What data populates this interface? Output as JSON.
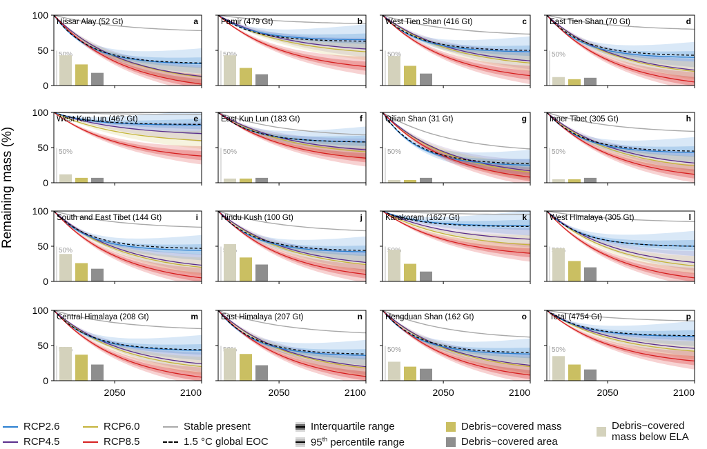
{
  "ylabel": "Remaining mass (%)",
  "yticks": [
    "0",
    "50",
    "100"
  ],
  "xticks": [
    "2050",
    "2100"
  ],
  "bar_ref_label": "50%",
  "colors": {
    "rcp26": "#2a7fd0",
    "rcp45": "#5a2d8c",
    "rcp60": "#c4b33a",
    "rcp85": "#d62020",
    "stable": "#a9a9a9",
    "bar_mass_below_ela": "#d4d2bc",
    "bar_debris_mass": "#cabf62",
    "bar_debris_area": "#8e8e8e"
  },
  "chart_data": [
    {
      "type": "line",
      "letter": "a",
      "title": "Hissar Alay (52 Gt)",
      "xlim": [
        2015,
        2100
      ],
      "ylim": [
        0,
        100
      ],
      "end": {
        "rcp26": 31,
        "rcp45": 13,
        "rcp60": 12,
        "rcp85": 2,
        "eoc15": 32,
        "stable": 78
      },
      "bars": [
        43,
        30,
        18
      ]
    },
    {
      "type": "line",
      "letter": "b",
      "title": "Pamir (479 Gt)",
      "xlim": [
        2015,
        2100
      ],
      "ylim": [
        0,
        100
      ],
      "end": {
        "rcp26": 65,
        "rcp45": 52,
        "rcp60": 48,
        "rcp85": 27,
        "eoc15": 63,
        "stable": 88
      },
      "bars": [
        43,
        25,
        16
      ]
    },
    {
      "type": "line",
      "letter": "c",
      "title": "West Tien Shan (416 Gt)",
      "xlim": [
        2015,
        2100
      ],
      "ylim": [
        0,
        100
      ],
      "end": {
        "rcp26": 48,
        "rcp45": 35,
        "rcp60": 32,
        "rcp85": 14,
        "eoc15": 50,
        "stable": 73
      },
      "bars": [
        42,
        28,
        17
      ]
    },
    {
      "type": "line",
      "letter": "d",
      "title": "East Tien Shan (70 Gt)",
      "xlim": [
        2015,
        2100
      ],
      "ylim": [
        0,
        100
      ],
      "end": {
        "rcp26": 40,
        "rcp45": 22,
        "rcp60": 20,
        "rcp85": 5,
        "eoc15": 43,
        "stable": 80
      },
      "bars": [
        12,
        9,
        11
      ]
    },
    {
      "type": "line",
      "letter": "e",
      "title": "West Kun Lun (467 Gt)",
      "xlim": [
        2015,
        2100
      ],
      "ylim": [
        0,
        100
      ],
      "end": {
        "rcp26": 82,
        "rcp45": 70,
        "rcp60": 60,
        "rcp85": 38,
        "eoc15": 83,
        "stable": 97
      },
      "bars": [
        12,
        7,
        7
      ]
    },
    {
      "type": "line",
      "letter": "f",
      "title": "East Kun Lun (183 Gt)",
      "xlim": [
        2015,
        2100
      ],
      "ylim": [
        0,
        100
      ],
      "end": {
        "rcp26": 58,
        "rcp45": 47,
        "rcp60": 44,
        "rcp85": 35,
        "eoc15": 58,
        "stable": 68
      },
      "bars": [
        6,
        6,
        7
      ]
    },
    {
      "type": "line",
      "letter": "g",
      "title": "Qilian Shan (31 Gt)",
      "xlim": [
        2015,
        2100
      ],
      "ylim": [
        0,
        100
      ],
      "end": {
        "rcp26": 25,
        "rcp45": 17,
        "rcp60": 15,
        "rcp85": 8,
        "eoc15": 27,
        "stable": 48
      },
      "bars": [
        4,
        4,
        7
      ]
    },
    {
      "type": "line",
      "letter": "h",
      "title": "Inner Tibet (305 Gt)",
      "xlim": [
        2015,
        2100
      ],
      "ylim": [
        0,
        100
      ],
      "end": {
        "rcp26": 43,
        "rcp45": 28,
        "rcp60": 24,
        "rcp85": 12,
        "eoc15": 45,
        "stable": 73
      },
      "bars": [
        5,
        5,
        7
      ]
    },
    {
      "type": "line",
      "letter": "i",
      "title": "South and East Tibet (144 Gt)",
      "xlim": [
        2015,
        2100
      ],
      "ylim": [
        0,
        100
      ],
      "end": {
        "rcp26": 44,
        "rcp45": 23,
        "rcp60": 20,
        "rcp85": 5,
        "eoc15": 47,
        "stable": 77
      },
      "bars": [
        39,
        26,
        18
      ]
    },
    {
      "type": "line",
      "letter": "j",
      "title": "Hindu Kush (100 Gt)",
      "xlim": [
        2015,
        2100
      ],
      "ylim": [
        0,
        100
      ],
      "end": {
        "rcp26": 42,
        "rcp45": 27,
        "rcp60": 24,
        "rcp85": 10,
        "eoc15": 44,
        "stable": 72
      },
      "bars": [
        53,
        34,
        24
      ]
    },
    {
      "type": "line",
      "letter": "k",
      "title": "Karakoram (1627 Gt)",
      "xlim": [
        2015,
        2100
      ],
      "ylim": [
        0,
        100
      ],
      "end": {
        "rcp26": 79,
        "rcp45": 60,
        "rcp60": 52,
        "rcp85": 40,
        "eoc15": 78,
        "stable": 95
      },
      "bars": [
        45,
        25,
        14
      ]
    },
    {
      "type": "line",
      "letter": "l",
      "title": "West Himalaya (305 Gt)",
      "xlim": [
        2015,
        2100
      ],
      "ylim": [
        0,
        100
      ],
      "end": {
        "rcp26": 50,
        "rcp45": 27,
        "rcp60": 22,
        "rcp85": 5,
        "eoc15": 50,
        "stable": 85
      },
      "bars": [
        47,
        29,
        20
      ]
    },
    {
      "type": "line",
      "letter": "m",
      "title": "Central Himalaya (208 Gt)",
      "xlim": [
        2015,
        2100
      ],
      "ylim": [
        0,
        100
      ],
      "end": {
        "rcp26": 43,
        "rcp45": 24,
        "rcp60": 20,
        "rcp85": 5,
        "eoc15": 44,
        "stable": 74
      },
      "bars": [
        48,
        37,
        23
      ]
    },
    {
      "type": "line",
      "letter": "n",
      "title": "East Himalaya (207 Gt)",
      "xlim": [
        2015,
        2100
      ],
      "ylim": [
        0,
        100
      ],
      "end": {
        "rcp26": 36,
        "rcp45": 20,
        "rcp60": 18,
        "rcp85": 6,
        "eoc15": 38,
        "stable": 68
      },
      "bars": [
        46,
        38,
        22
      ]
    },
    {
      "type": "line",
      "letter": "o",
      "title": "Hengduan Shan (162 Gt)",
      "xlim": [
        2015,
        2100
      ],
      "ylim": [
        0,
        100
      ],
      "end": {
        "rcp26": 38,
        "rcp45": 22,
        "rcp60": 20,
        "rcp85": 8,
        "eoc15": 40,
        "stable": 62
      },
      "bars": [
        27,
        20,
        17
      ]
    },
    {
      "type": "line",
      "letter": "p",
      "title": "Total (4754 Gt)",
      "xlim": [
        2015,
        2100
      ],
      "ylim": [
        0,
        100
      ],
      "end": {
        "rcp26": 63,
        "rcp45": 46,
        "rcp60": 42,
        "rcp85": 28,
        "eoc15": 64,
        "stable": 85
      },
      "bars": [
        35,
        23,
        16
      ]
    }
  ],
  "legend": {
    "rcp26": "RCP2.6",
    "rcp45": "RCP4.5",
    "rcp60": "RCP6.0",
    "rcp85": "RCP8.5",
    "stable": "Stable present",
    "eoc15": "1.5 °C global EOC",
    "iqr": "Interquartile range",
    "p95_a": "95",
    "p95_sup": "th",
    "p95_b": " percentile range",
    "debris_mass": "Debris−covered mass",
    "debris_area": "Debris−covered area",
    "below_ela_1": "Debris−covered",
    "below_ela_2": "mass below ELA"
  }
}
